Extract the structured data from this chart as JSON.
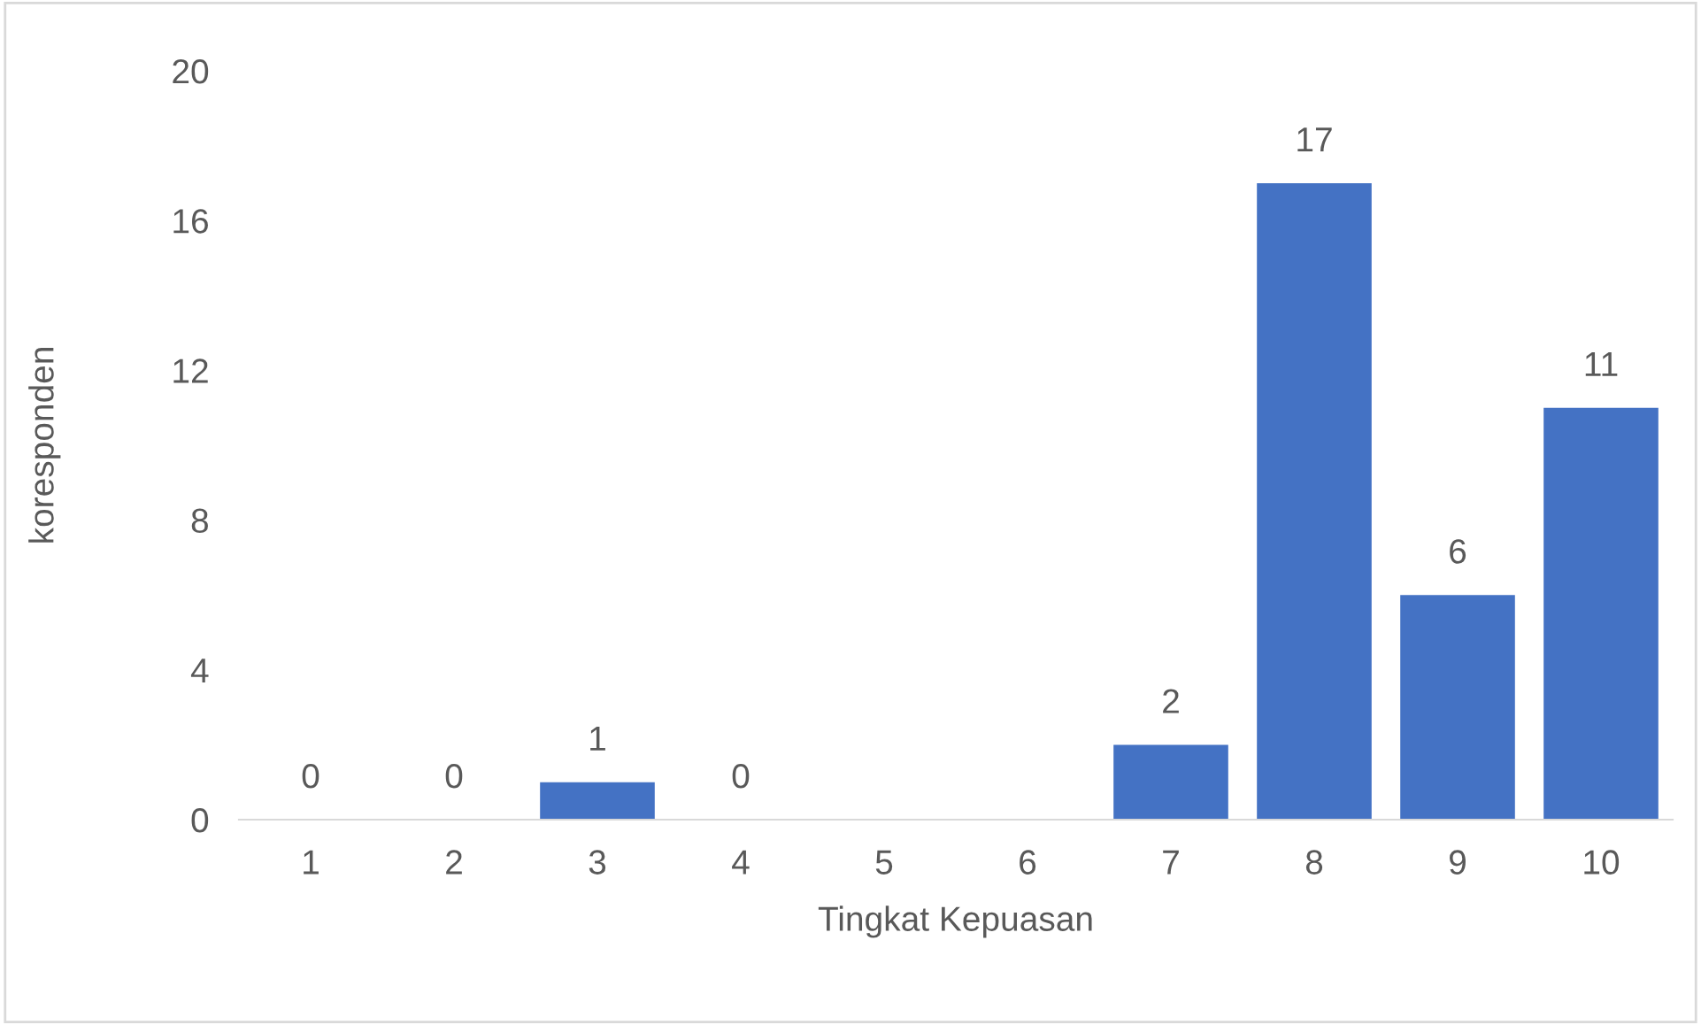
{
  "chart_data": {
    "type": "bar",
    "xlabel": "Tingkat Kepuasan",
    "ylabel": "koresponden",
    "categories": [
      "1",
      "2",
      "3",
      "4",
      "5",
      "6",
      "7",
      "8",
      "9",
      "10"
    ],
    "values": [
      0,
      0,
      1,
      0,
      null,
      null,
      2,
      17,
      6,
      11
    ],
    "color": "#4472c4",
    "ylim": [
      0,
      20
    ],
    "yticks": [
      0,
      4,
      8,
      12,
      16,
      20
    ],
    "grid": false,
    "data_labels": true
  }
}
